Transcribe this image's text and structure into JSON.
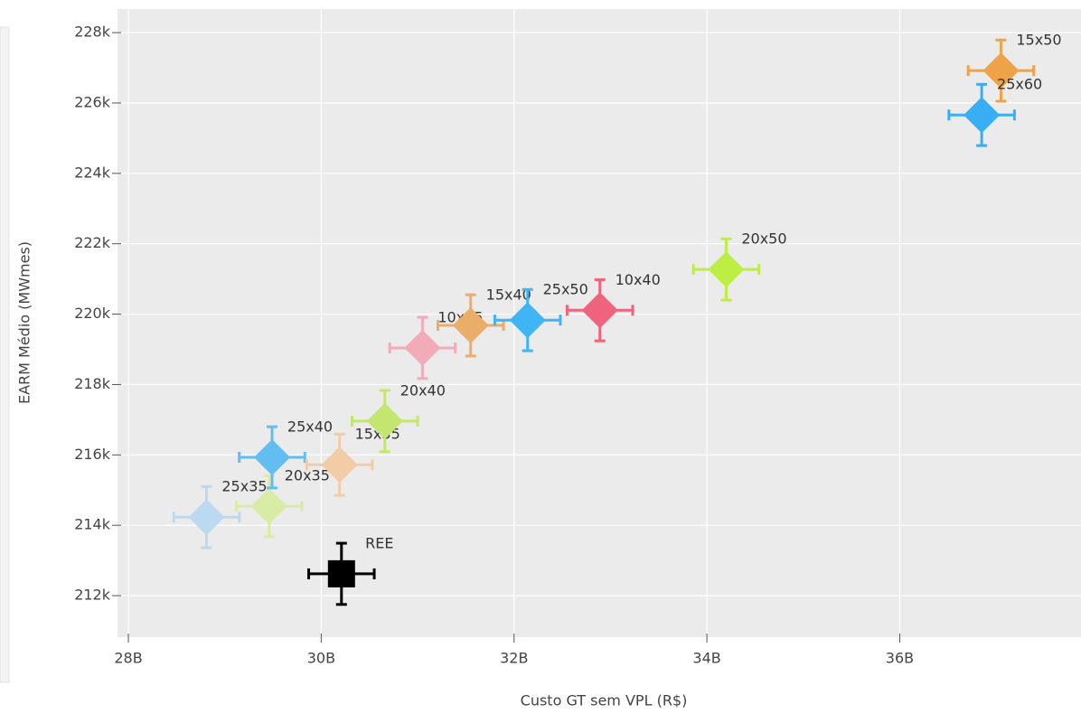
{
  "chart_data": {
    "type": "scatter",
    "x_label": "Custo GT sem VPL (R$)",
    "y_label": "EARM Médio (MWmes)",
    "xlim": [
      27887000000,
      37880000000
    ],
    "ylim": [
      210820,
      228670
    ],
    "xticks": [
      {
        "value": 28000000000,
        "label": "28B"
      },
      {
        "value": 30000000000,
        "label": "30B"
      },
      {
        "value": 32000000000,
        "label": "32B"
      },
      {
        "value": 34000000000,
        "label": "34B"
      },
      {
        "value": 36000000000,
        "label": "36B"
      }
    ],
    "yticks": [
      {
        "value": 212000,
        "label": "212k"
      },
      {
        "value": 214000,
        "label": "214k"
      },
      {
        "value": 216000,
        "label": "216k"
      },
      {
        "value": 218000,
        "label": "218k"
      },
      {
        "value": 220000,
        "label": "220k"
      },
      {
        "value": 222000,
        "label": "222k"
      },
      {
        "value": 224000,
        "label": "224k"
      },
      {
        "value": 226000,
        "label": "226k"
      },
      {
        "value": 228000,
        "label": "228k"
      }
    ],
    "grid": true,
    "series": [
      {
        "name": "25x35",
        "color": "#bcdaef",
        "symbol": "diamond",
        "x": [
          28810000000
        ],
        "values": [
          214230
        ],
        "x_error": [
          340000000
        ],
        "y_error": [
          870
        ]
      },
      {
        "name": "20x35",
        "color": "#d9eca6",
        "symbol": "diamond",
        "x": [
          29460000000
        ],
        "values": [
          214540
        ],
        "x_error": [
          340000000
        ],
        "y_error": [
          870
        ]
      },
      {
        "name": "25x40",
        "color": "#62bdf0",
        "symbol": "diamond",
        "x": [
          29490000000
        ],
        "values": [
          215930
        ],
        "x_error": [
          340000000
        ],
        "y_error": [
          870
        ]
      },
      {
        "name": "15x35",
        "color": "#f2cca6",
        "symbol": "diamond",
        "x": [
          30190000000
        ],
        "values": [
          215720
        ],
        "x_error": [
          340000000
        ],
        "y_error": [
          870
        ]
      },
      {
        "name": "20x40",
        "color": "#c2e670",
        "symbol": "diamond",
        "x": [
          30660000000
        ],
        "values": [
          216960
        ],
        "x_error": [
          340000000
        ],
        "y_error": [
          870
        ]
      },
      {
        "name": "10x35",
        "color": "#f2abb8",
        "symbol": "diamond",
        "x": [
          31050000000
        ],
        "values": [
          219040
        ],
        "x_error": [
          340000000
        ],
        "y_error": [
          870
        ]
      },
      {
        "name": "15x40",
        "color": "#eaae6a",
        "symbol": "diamond",
        "x": [
          31550000000
        ],
        "values": [
          219680
        ],
        "x_error": [
          340000000
        ],
        "y_error": [
          870
        ]
      },
      {
        "name": "25x50",
        "color": "#40b5f5",
        "symbol": "diamond",
        "x": [
          32140000000
        ],
        "values": [
          219830
        ],
        "x_error": [
          340000000
        ],
        "y_error": [
          870
        ]
      },
      {
        "name": "10x40",
        "color": "#f0637c",
        "symbol": "diamond",
        "x": [
          32890000000
        ],
        "values": [
          220110
        ],
        "x_error": [
          340000000
        ],
        "y_error": [
          870
        ]
      },
      {
        "name": "20x50",
        "color": "#bcee44",
        "symbol": "diamond",
        "x": [
          34200000000
        ],
        "values": [
          221270
        ],
        "x_error": [
          340000000
        ],
        "y_error": [
          870
        ]
      },
      {
        "name": "15x50",
        "color": "#eea348",
        "symbol": "diamond",
        "x": [
          37050000000
        ],
        "values": [
          226920
        ],
        "x_error": [
          340000000
        ],
        "y_error": [
          870
        ]
      },
      {
        "name": "25x60",
        "color": "#38aff5",
        "symbol": "diamond",
        "x": [
          36850000000
        ],
        "values": [
          225660
        ],
        "x_error": [
          340000000
        ],
        "y_error": [
          870
        ]
      },
      {
        "name": "REE",
        "color": "#000000",
        "symbol": "square",
        "x": [
          30210000000
        ],
        "values": [
          212620
        ],
        "x_error": [
          340000000
        ],
        "y_error": [
          870
        ]
      }
    ]
  }
}
